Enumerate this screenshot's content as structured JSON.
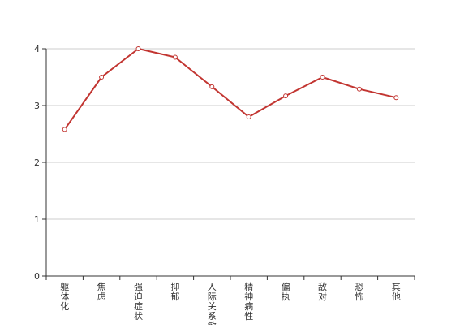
{
  "chart_data": {
    "type": "line",
    "title": "",
    "xlabel": "",
    "ylabel": "",
    "categories": [
      "躯体化",
      "焦虑",
      "强迫症状",
      "抑郁",
      "人际关系敏感",
      "精神病性",
      "偏执",
      "敌对",
      "恐怖",
      "其他"
    ],
    "series": [
      {
        "values": [
          2.58,
          3.5,
          4.0,
          3.85,
          3.33,
          2.8,
          3.17,
          3.5,
          3.29,
          3.14
        ]
      }
    ],
    "ylim": [
      0,
      4
    ],
    "yticks": [
      0,
      1,
      2,
      3,
      4
    ],
    "grid": true,
    "colors": {
      "line": "#c23531",
      "grid": "#cccccc",
      "axis": "#333333",
      "point_fill": "#ffffff"
    }
  }
}
